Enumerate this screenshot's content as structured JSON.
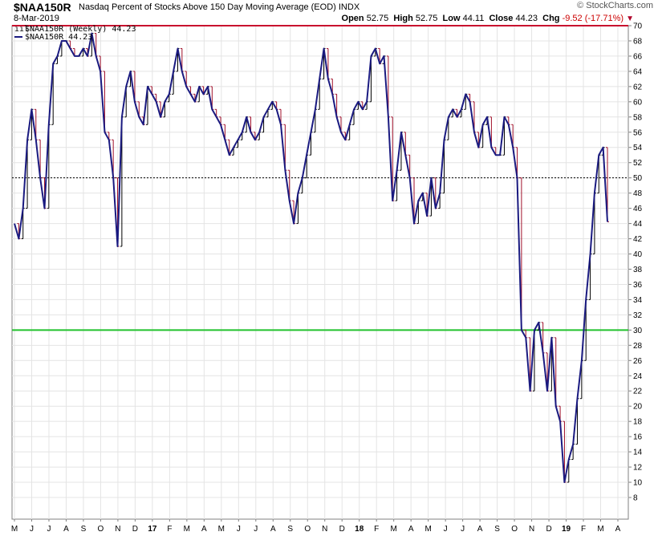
{
  "header": {
    "symbol": "$NAA150R",
    "description": "Nasdaq Percent of Stocks Above 150 Day Moving Average (EOD)",
    "exchange": "INDX",
    "date": "8-Mar-2019",
    "source": "© StockCharts.com",
    "open_label": "Open",
    "open": "52.75",
    "high_label": "High",
    "high": "52.75",
    "low_label": "Low",
    "low": "44.11",
    "close_label": "Close",
    "close": "44.23",
    "chg_label": "Chg",
    "chg": "-9.52 (-17.71%)"
  },
  "legend": {
    "line1": "$NAA150R (Weekly) 44.23",
    "line2": "$NAA150R 44.23"
  },
  "colors": {
    "line": "#1a1a80",
    "bar_up": "#000000",
    "bar_down": "#a0102a",
    "line_70": "#c8102e",
    "line_30": "#22c22e",
    "grid": "#e4e4e4"
  },
  "chart_data": {
    "type": "line",
    "title": "$NAA150R Nasdaq Percent of Stocks Above 150 Day Moving Average (EOD)",
    "ylim": [
      8,
      70
    ],
    "y_ticks": [
      8,
      10,
      12,
      14,
      16,
      18,
      20,
      22,
      24,
      26,
      28,
      30,
      32,
      34,
      36,
      38,
      40,
      42,
      44,
      46,
      48,
      50,
      52,
      54,
      56,
      58,
      60,
      62,
      64,
      66,
      68,
      70
    ],
    "x_ticks": [
      "M",
      "J",
      "J",
      "A",
      "S",
      "O",
      "N",
      "D",
      "17",
      "F",
      "M",
      "A",
      "M",
      "J",
      "J",
      "A",
      "S",
      "O",
      "N",
      "D",
      "18",
      "F",
      "M",
      "A",
      "M",
      "J",
      "J",
      "A",
      "S",
      "O",
      "N",
      "D",
      "19",
      "F",
      "M",
      "A"
    ],
    "bold_ticks": [
      "17",
      "18",
      "19"
    ],
    "reference_lines": [
      {
        "value": 70,
        "style": "solid",
        "color": "red"
      },
      {
        "value": 50,
        "style": "dotted",
        "color": "black"
      },
      {
        "value": 30,
        "style": "solid",
        "color": "green"
      }
    ],
    "series": [
      {
        "name": "$NAA150R (Weekly)",
        "values": [
          44,
          42,
          46,
          55,
          59,
          55,
          50,
          46,
          57,
          65,
          66,
          68,
          68,
          67,
          66,
          66,
          67,
          66,
          69,
          66,
          64,
          56,
          55,
          50,
          41,
          58,
          62,
          64,
          60,
          58,
          57,
          62,
          61,
          60,
          58,
          60,
          61,
          64,
          67,
          64,
          62,
          61,
          60,
          62,
          61,
          62,
          59,
          58,
          57,
          55,
          53,
          54,
          55,
          56,
          58,
          56,
          55,
          56,
          58,
          59,
          60,
          59,
          57,
          51,
          47,
          44,
          48,
          50,
          53,
          56,
          59,
          63,
          67,
          63,
          61,
          58,
          56,
          55,
          57,
          59,
          60,
          59,
          60,
          66,
          67,
          65,
          66,
          58,
          47,
          51,
          56,
          53,
          50,
          44,
          47,
          48,
          45,
          50,
          46,
          48,
          55,
          58,
          59,
          58,
          59,
          61,
          60,
          56,
          54,
          57,
          58,
          54,
          53,
          53,
          58,
          57,
          54,
          50,
          30,
          29,
          22,
          30,
          31,
          27,
          22,
          29,
          20,
          18,
          10,
          13,
          15,
          21,
          26,
          34,
          40,
          48,
          53,
          54,
          44.23
        ]
      }
    ]
  }
}
